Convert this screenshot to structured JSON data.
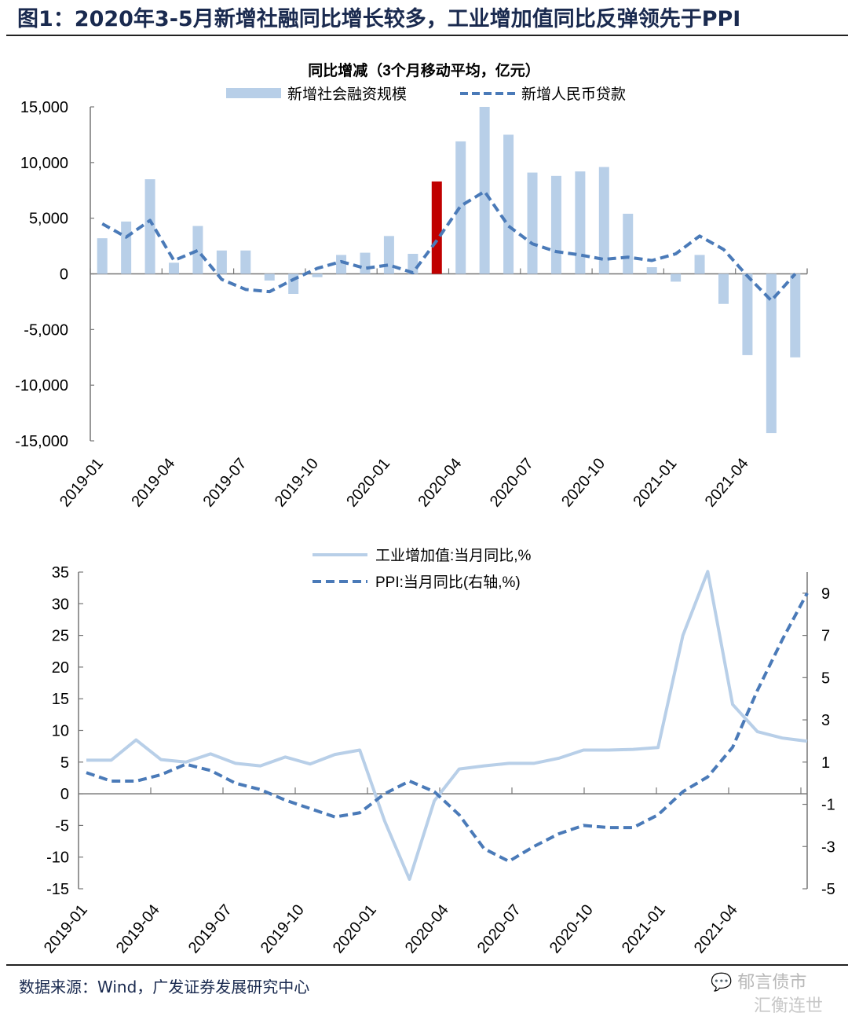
{
  "figure": {
    "title": "图1：2020年3-5月新增社融同比增长较多，工业增加值同比反弹领先于PPI",
    "source": "数据来源：Wind，广发证券发展研究中心",
    "watermark_line1": "郁言债市",
    "watermark_line2": "汇衡连世"
  },
  "colors": {
    "bar": "#b8cfe8",
    "bar_highlight": "#c00000",
    "line_dark": "#4a7ab8",
    "line_light": "#b8cfe8",
    "axis": "#777777",
    "title": "#1a2a4f"
  },
  "chart_data": [
    {
      "type": "bar",
      "title": "同比增减（3个月移动平均，亿元）",
      "legend": [
        "新增社会融资规模",
        "新增人民币贷款"
      ],
      "legend_position": "top-center",
      "x": [
        "2019-01",
        "2019-02",
        "2019-03",
        "2019-04",
        "2019-05",
        "2019-06",
        "2019-07",
        "2019-08",
        "2019-09",
        "2019-10",
        "2019-11",
        "2019-12",
        "2020-01",
        "2020-02",
        "2020-03",
        "2020-04",
        "2020-05",
        "2020-06",
        "2020-07",
        "2020-08",
        "2020-09",
        "2020-10",
        "2020-11",
        "2020-12",
        "2021-01",
        "2021-02",
        "2021-03",
        "2021-04",
        "2021-05",
        "2021-06"
      ],
      "xtick_labels": [
        "2019-01",
        "2019-04",
        "2019-07",
        "2019-10",
        "2020-01",
        "2020-04",
        "2020-07",
        "2020-10",
        "2021-01",
        "2021-04"
      ],
      "highlight_index": 14,
      "series": [
        {
          "name": "新增社会融资规模",
          "kind": "bar",
          "values": [
            3200,
            4700,
            8500,
            1000,
            4300,
            2100,
            2100,
            -600,
            -1800,
            -300,
            1700,
            1900,
            3400,
            1800,
            8300,
            11900,
            15000,
            12500,
            9100,
            8800,
            9200,
            9600,
            5400,
            600,
            -700,
            1700,
            -2700,
            -7300,
            -14300,
            -7500
          ]
        },
        {
          "name": "新增人民币贷款",
          "kind": "line-dashed",
          "values": [
            4500,
            3300,
            4800,
            1200,
            2100,
            -500,
            -1400,
            -1600,
            -500,
            500,
            1100,
            500,
            800,
            100,
            3000,
            6100,
            7400,
            4300,
            2700,
            2000,
            1700,
            1300,
            1500,
            1200,
            1800,
            3400,
            2200,
            -200,
            -2400,
            0
          ]
        }
      ],
      "ylim": [
        -15000,
        15000
      ],
      "yticks": [
        "15,000",
        "10,000",
        "5,000",
        "0",
        "-5,000",
        "-10,000",
        "-15,000"
      ],
      "ytick_values": [
        15000,
        10000,
        5000,
        0,
        -5000,
        -10000,
        -15000
      ],
      "xlabel": "",
      "ylabel": "",
      "grid": false
    },
    {
      "type": "line",
      "title": "",
      "legend": [
        "工业增加值:当月同比,%",
        "PPI:当月同比(右轴,%)"
      ],
      "legend_position": "top-center",
      "x": [
        "2019-01",
        "2019-02",
        "2019-03",
        "2019-04",
        "2019-05",
        "2019-06",
        "2019-07",
        "2019-08",
        "2019-09",
        "2019-10",
        "2019-11",
        "2019-12",
        "2020-01",
        "2020-02",
        "2020-03",
        "2020-04",
        "2020-05",
        "2020-06",
        "2020-07",
        "2020-08",
        "2020-09",
        "2020-10",
        "2020-11",
        "2020-12",
        "2021-01",
        "2021-02",
        "2021-03",
        "2021-04",
        "2021-05",
        "2021-06"
      ],
      "xtick_labels": [
        "2019-01",
        "2019-04",
        "2019-07",
        "2019-10",
        "2020-01",
        "2020-04",
        "2020-07",
        "2020-10",
        "2021-01",
        "2021-04"
      ],
      "series": [
        {
          "name": "工业增加值:当月同比,%",
          "axis": "left",
          "kind": "line-solid",
          "values": [
            5.3,
            5.3,
            8.5,
            5.4,
            5.0,
            6.3,
            4.8,
            4.4,
            5.8,
            4.7,
            6.2,
            6.9,
            -4.3,
            -13.5,
            -1.1,
            3.9,
            4.4,
            4.8,
            4.8,
            5.6,
            6.9,
            6.9,
            7.0,
            7.3,
            25.0,
            35.1,
            14.1,
            9.8,
            8.8,
            8.3
          ]
        },
        {
          "name": "PPI:当月同比(右轴,%)",
          "axis": "right",
          "kind": "line-dashed",
          "values": [
            0.5,
            0.1,
            0.1,
            0.4,
            0.9,
            0.6,
            0.0,
            -0.3,
            -0.8,
            -1.2,
            -1.6,
            -1.4,
            -0.5,
            0.1,
            -0.4,
            -1.5,
            -3.1,
            -3.7,
            -3.0,
            -2.4,
            -2.0,
            -2.1,
            -2.1,
            -1.5,
            -0.4,
            0.3,
            1.7,
            4.4,
            6.8,
            9.0
          ]
        }
      ],
      "ylim_left": [
        -15,
        35
      ],
      "ylim_right": [
        -5,
        10
      ],
      "yticks_left": [
        "35",
        "30",
        "25",
        "20",
        "15",
        "10",
        "5",
        "0",
        "-5",
        "-10",
        "-15"
      ],
      "ytick_values_left": [
        35,
        30,
        25,
        20,
        15,
        10,
        5,
        0,
        -5,
        -10,
        -15
      ],
      "yticks_right": [
        "9",
        "7",
        "5",
        "3",
        "1",
        "-1",
        "-3",
        "-5"
      ],
      "ytick_values_right": [
        9,
        7,
        5,
        3,
        1,
        -1,
        -3,
        -5
      ],
      "xlabel": "",
      "ylabel": "",
      "grid": false
    }
  ]
}
